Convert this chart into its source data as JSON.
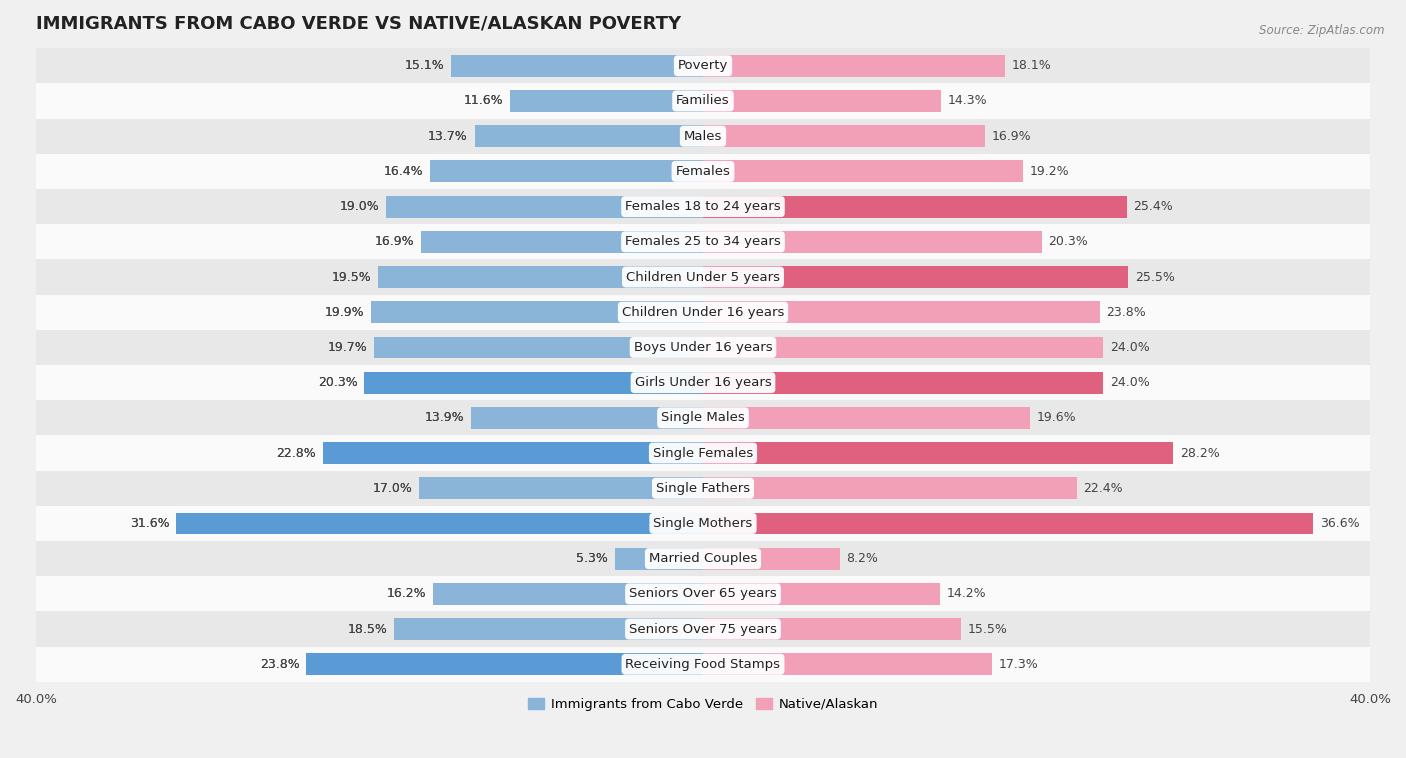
{
  "title": "IMMIGRANTS FROM CABO VERDE VS NATIVE/ALASKAN POVERTY",
  "source": "Source: ZipAtlas.com",
  "categories": [
    "Poverty",
    "Families",
    "Males",
    "Females",
    "Females 18 to 24 years",
    "Females 25 to 34 years",
    "Children Under 5 years",
    "Children Under 16 years",
    "Boys Under 16 years",
    "Girls Under 16 years",
    "Single Males",
    "Single Females",
    "Single Fathers",
    "Single Mothers",
    "Married Couples",
    "Seniors Over 65 years",
    "Seniors Over 75 years",
    "Receiving Food Stamps"
  ],
  "cabo_verde": [
    15.1,
    11.6,
    13.7,
    16.4,
    19.0,
    16.9,
    19.5,
    19.9,
    19.7,
    20.3,
    13.9,
    22.8,
    17.0,
    31.6,
    5.3,
    16.2,
    18.5,
    23.8
  ],
  "native": [
    18.1,
    14.3,
    16.9,
    19.2,
    25.4,
    20.3,
    25.5,
    23.8,
    24.0,
    24.0,
    19.6,
    28.2,
    22.4,
    36.6,
    8.2,
    14.2,
    15.5,
    17.3
  ],
  "cabo_verde_color": "#8ab4d8",
  "native_color": "#f2a0b8",
  "cabo_verde_highlight": "#5b9bd5",
  "native_highlight": "#e06080",
  "axis_max": 40.0,
  "bar_height": 0.62,
  "background_color": "#f0f0f0",
  "row_alt_color": "#fafafa",
  "row_base_color": "#e8e8e8",
  "label_fontsize": 9.5,
  "value_fontsize": 9.0,
  "title_fontsize": 13
}
